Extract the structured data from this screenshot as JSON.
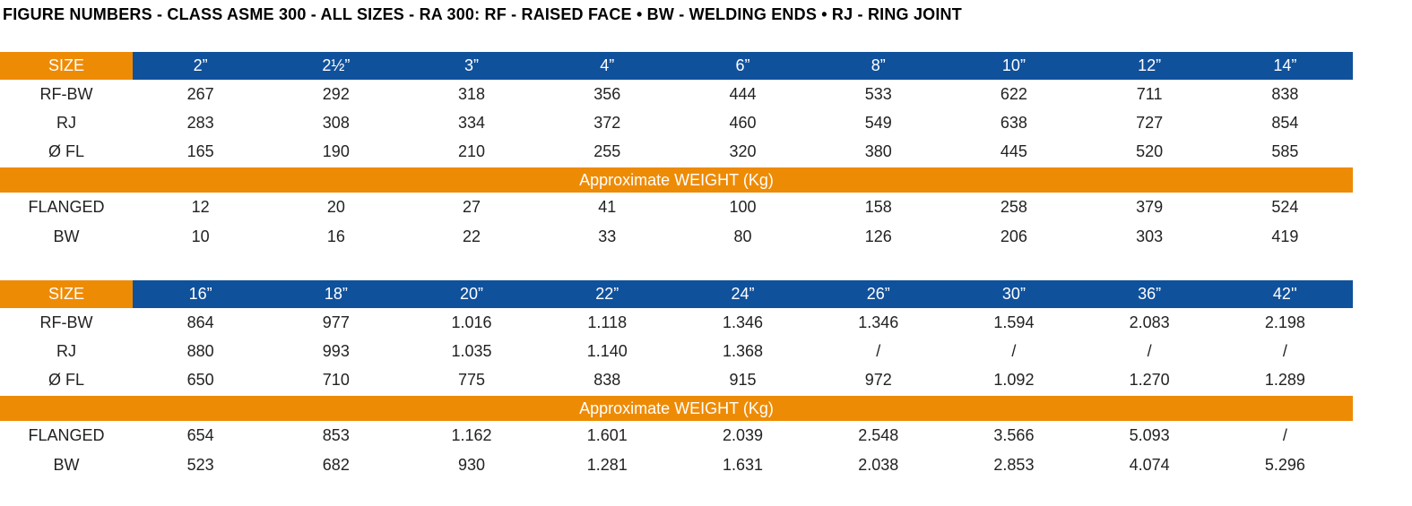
{
  "page": {
    "title": "FIGURE NUMBERS - CLASS ASME 300 - ALL SIZES - RA 300: RF - RAISED FACE • BW - WELDING ENDS • RJ - RING JOINT"
  },
  "colors": {
    "orange": "#EE8B05",
    "blue": "#10519C",
    "header_text": "#FFFFFF",
    "body_text": "#222222"
  },
  "size_header_label": "SIZE",
  "weight_band_label": "Approximate WEIGHT (Kg)",
  "tables": [
    {
      "sizes": [
        "2”",
        "2½”",
        "3”",
        "4”",
        "6”",
        "8”",
        "10”",
        "12”",
        "14”"
      ],
      "rows": [
        {
          "label": "RF-BW",
          "values": [
            "267",
            "292",
            "318",
            "356",
            "444",
            "533",
            "622",
            "711",
            "838"
          ]
        },
        {
          "label": "RJ",
          "values": [
            "283",
            "308",
            "334",
            "372",
            "460",
            "549",
            "638",
            "727",
            "854"
          ]
        },
        {
          "label": "Ø FL",
          "values": [
            "165",
            "190",
            "210",
            "255",
            "320",
            "380",
            "445",
            "520",
            "585"
          ]
        }
      ],
      "weight_rows": [
        {
          "label": "FLANGED",
          "values": [
            "12",
            "20",
            "27",
            "41",
            "100",
            "158",
            "258",
            "379",
            "524"
          ]
        },
        {
          "label": "BW",
          "values": [
            "10",
            "16",
            "22",
            "33",
            "80",
            "126",
            "206",
            "303",
            "419"
          ]
        }
      ]
    },
    {
      "sizes": [
        "16”",
        "18”",
        "20”",
        "22”",
        "24”",
        "26”",
        "30”",
        "36”",
        "42''"
      ],
      "rows": [
        {
          "label": "RF-BW",
          "values": [
            "864",
            "977",
            "1.016",
            "1.118",
            "1.346",
            "1.346",
            "1.594",
            "2.083",
            "2.198"
          ]
        },
        {
          "label": "RJ",
          "values": [
            "880",
            "993",
            "1.035",
            "1.140",
            "1.368",
            "/",
            "/",
            "/",
            "/"
          ]
        },
        {
          "label": "Ø FL",
          "values": [
            "650",
            "710",
            "775",
            "838",
            "915",
            "972",
            "1.092",
            "1.270",
            "1.289"
          ]
        }
      ],
      "weight_rows": [
        {
          "label": "FLANGED",
          "values": [
            "654",
            "853",
            "1.162",
            "1.601",
            "2.039",
            "2.548",
            "3.566",
            "5.093",
            "/"
          ]
        },
        {
          "label": "BW",
          "values": [
            "523",
            "682",
            "930",
            "1.281",
            "1.631",
            "2.038",
            "2.853",
            "4.074",
            "5.296"
          ]
        }
      ]
    }
  ]
}
